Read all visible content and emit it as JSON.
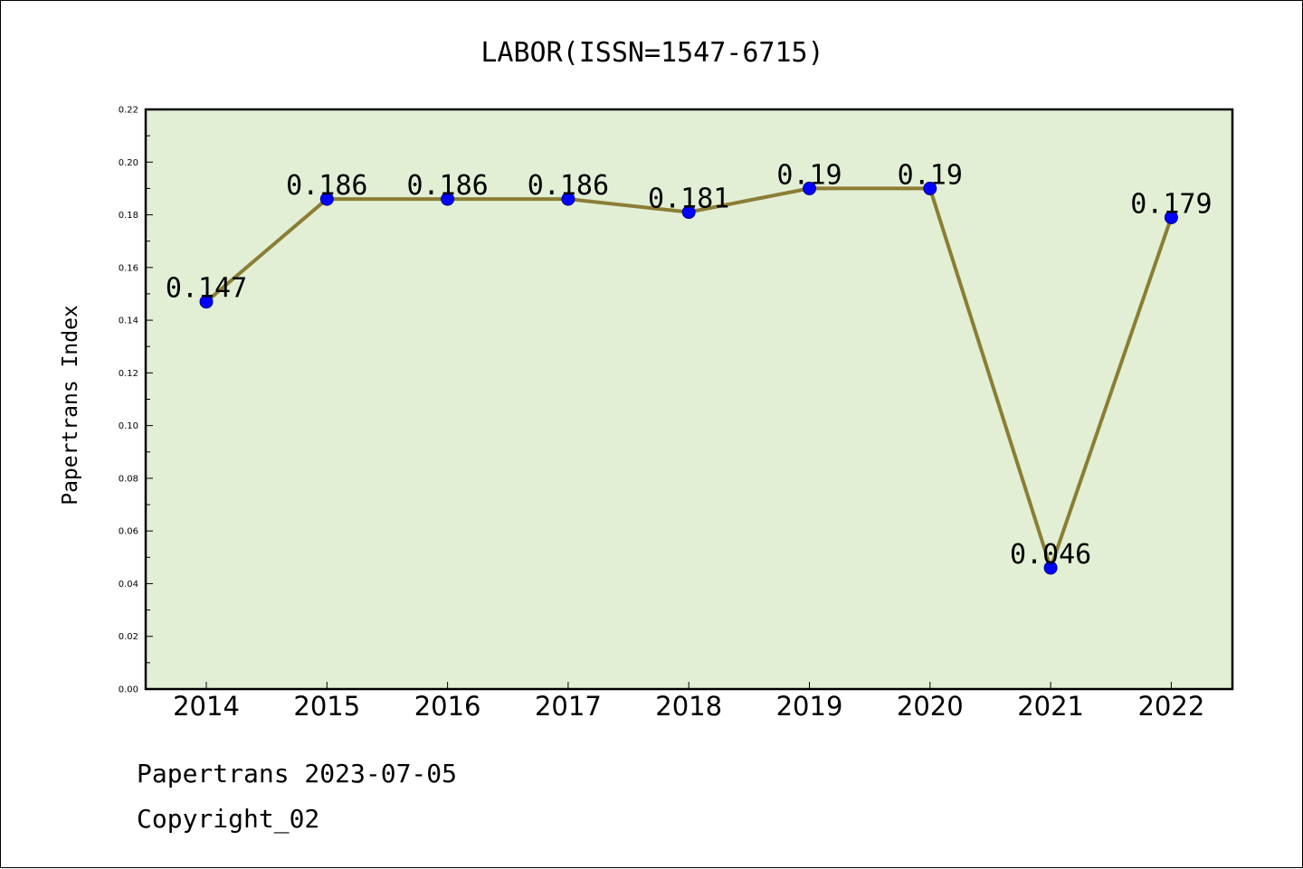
{
  "chart_data": {
    "type": "line",
    "title": "LABOR(ISSN=1547-6715)",
    "xlabel": "",
    "ylabel": "Papertrans Index",
    "categories": [
      "2014",
      "2015",
      "2016",
      "2017",
      "2018",
      "2019",
      "2020",
      "2021",
      "2022"
    ],
    "series": [
      {
        "values": [
          0.147,
          0.186,
          0.186,
          0.186,
          0.181,
          0.19,
          0.19,
          0.046,
          0.179
        ],
        "labels": [
          "0.147",
          "0.186",
          "0.186",
          "0.186",
          "0.181",
          "0.19",
          "0.19",
          "0.046",
          "0.179"
        ]
      }
    ],
    "ylim": [
      0,
      0.22
    ],
    "yticks": [
      "0.00",
      "0.02",
      "0.04",
      "0.06",
      "0.08",
      "0.10",
      "0.12",
      "0.14",
      "0.16",
      "0.18",
      "0.20",
      "0.22"
    ],
    "grid": false,
    "legend": "none",
    "colors": {
      "plot_background": "#e2efd5",
      "line": "#8b7d35",
      "marker": "#0000ff"
    }
  },
  "footer": {
    "line1": "Papertrans 2023-07-05",
    "line2": "Copyright_02"
  }
}
